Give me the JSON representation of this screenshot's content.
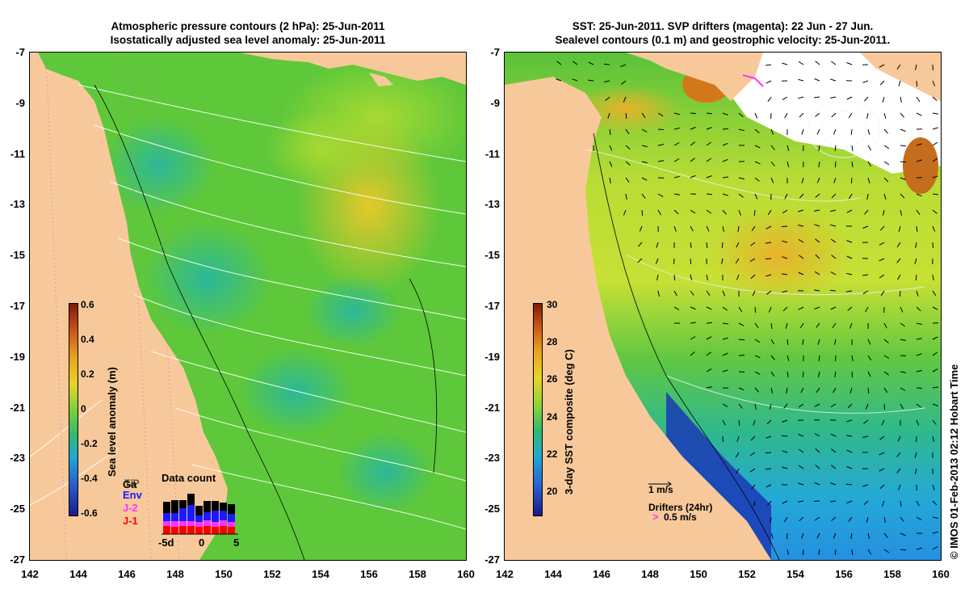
{
  "left_panel": {
    "title_line1": "Atmospheric pressure contours (2 hPa): 25-Jun-2011",
    "title_line2": "Isostatically adjusted sea level anomaly: 25-Jun-2011",
    "colorbar": {
      "label": "Sea level anomaly (m)",
      "ticks": [
        "0.6",
        "0.4",
        "0.2",
        "0",
        "-0.2",
        "-0.4",
        "-0.6"
      ]
    },
    "data_count": {
      "title": "Data count",
      "legend": [
        {
          "label": "Ga",
          "color": "#000000"
        },
        {
          "label": "T/P",
          "color": "#000000"
        },
        {
          "label": "Env",
          "color": "#1a1aff"
        },
        {
          "label": "J-2",
          "color": "#ff33ff"
        },
        {
          "label": "J-1",
          "color": "#ff0000"
        }
      ],
      "x_ticks": [
        "-5d",
        "0",
        "5"
      ]
    }
  },
  "right_panel": {
    "title_line1": "SST: 25-Jun-2011. SVP drifters (magenta): 22 Jun - 27 Jun.",
    "title_line2": "Sealevel contours (0.1 m) and geostrophic velocity: 25-Jun-2011.",
    "colorbar": {
      "label": "3-day SST composite (deg C)",
      "ticks": [
        "30",
        "28",
        "26",
        "24",
        "22",
        "20"
      ]
    },
    "velocity_scale_label": "1 m/s",
    "drifters_label": "Drifters (24hr)",
    "drifters_scale_label": "0.5 m/s"
  },
  "axes": {
    "x_ticks": [
      "142",
      "144",
      "146",
      "148",
      "150",
      "152",
      "154",
      "156",
      "158",
      "160"
    ],
    "y_ticks": [
      "-7",
      "-9",
      "-11",
      "-13",
      "-15",
      "-17",
      "-19",
      "-21",
      "-23",
      "-25",
      "-27"
    ]
  },
  "credit": "© IMOS 01-Feb-2013 02:12 Hobart Time",
  "colors": {
    "land": "#f7c99a",
    "ocean_green": "#5ec83a",
    "sst_yellow": "#c9e03a"
  }
}
